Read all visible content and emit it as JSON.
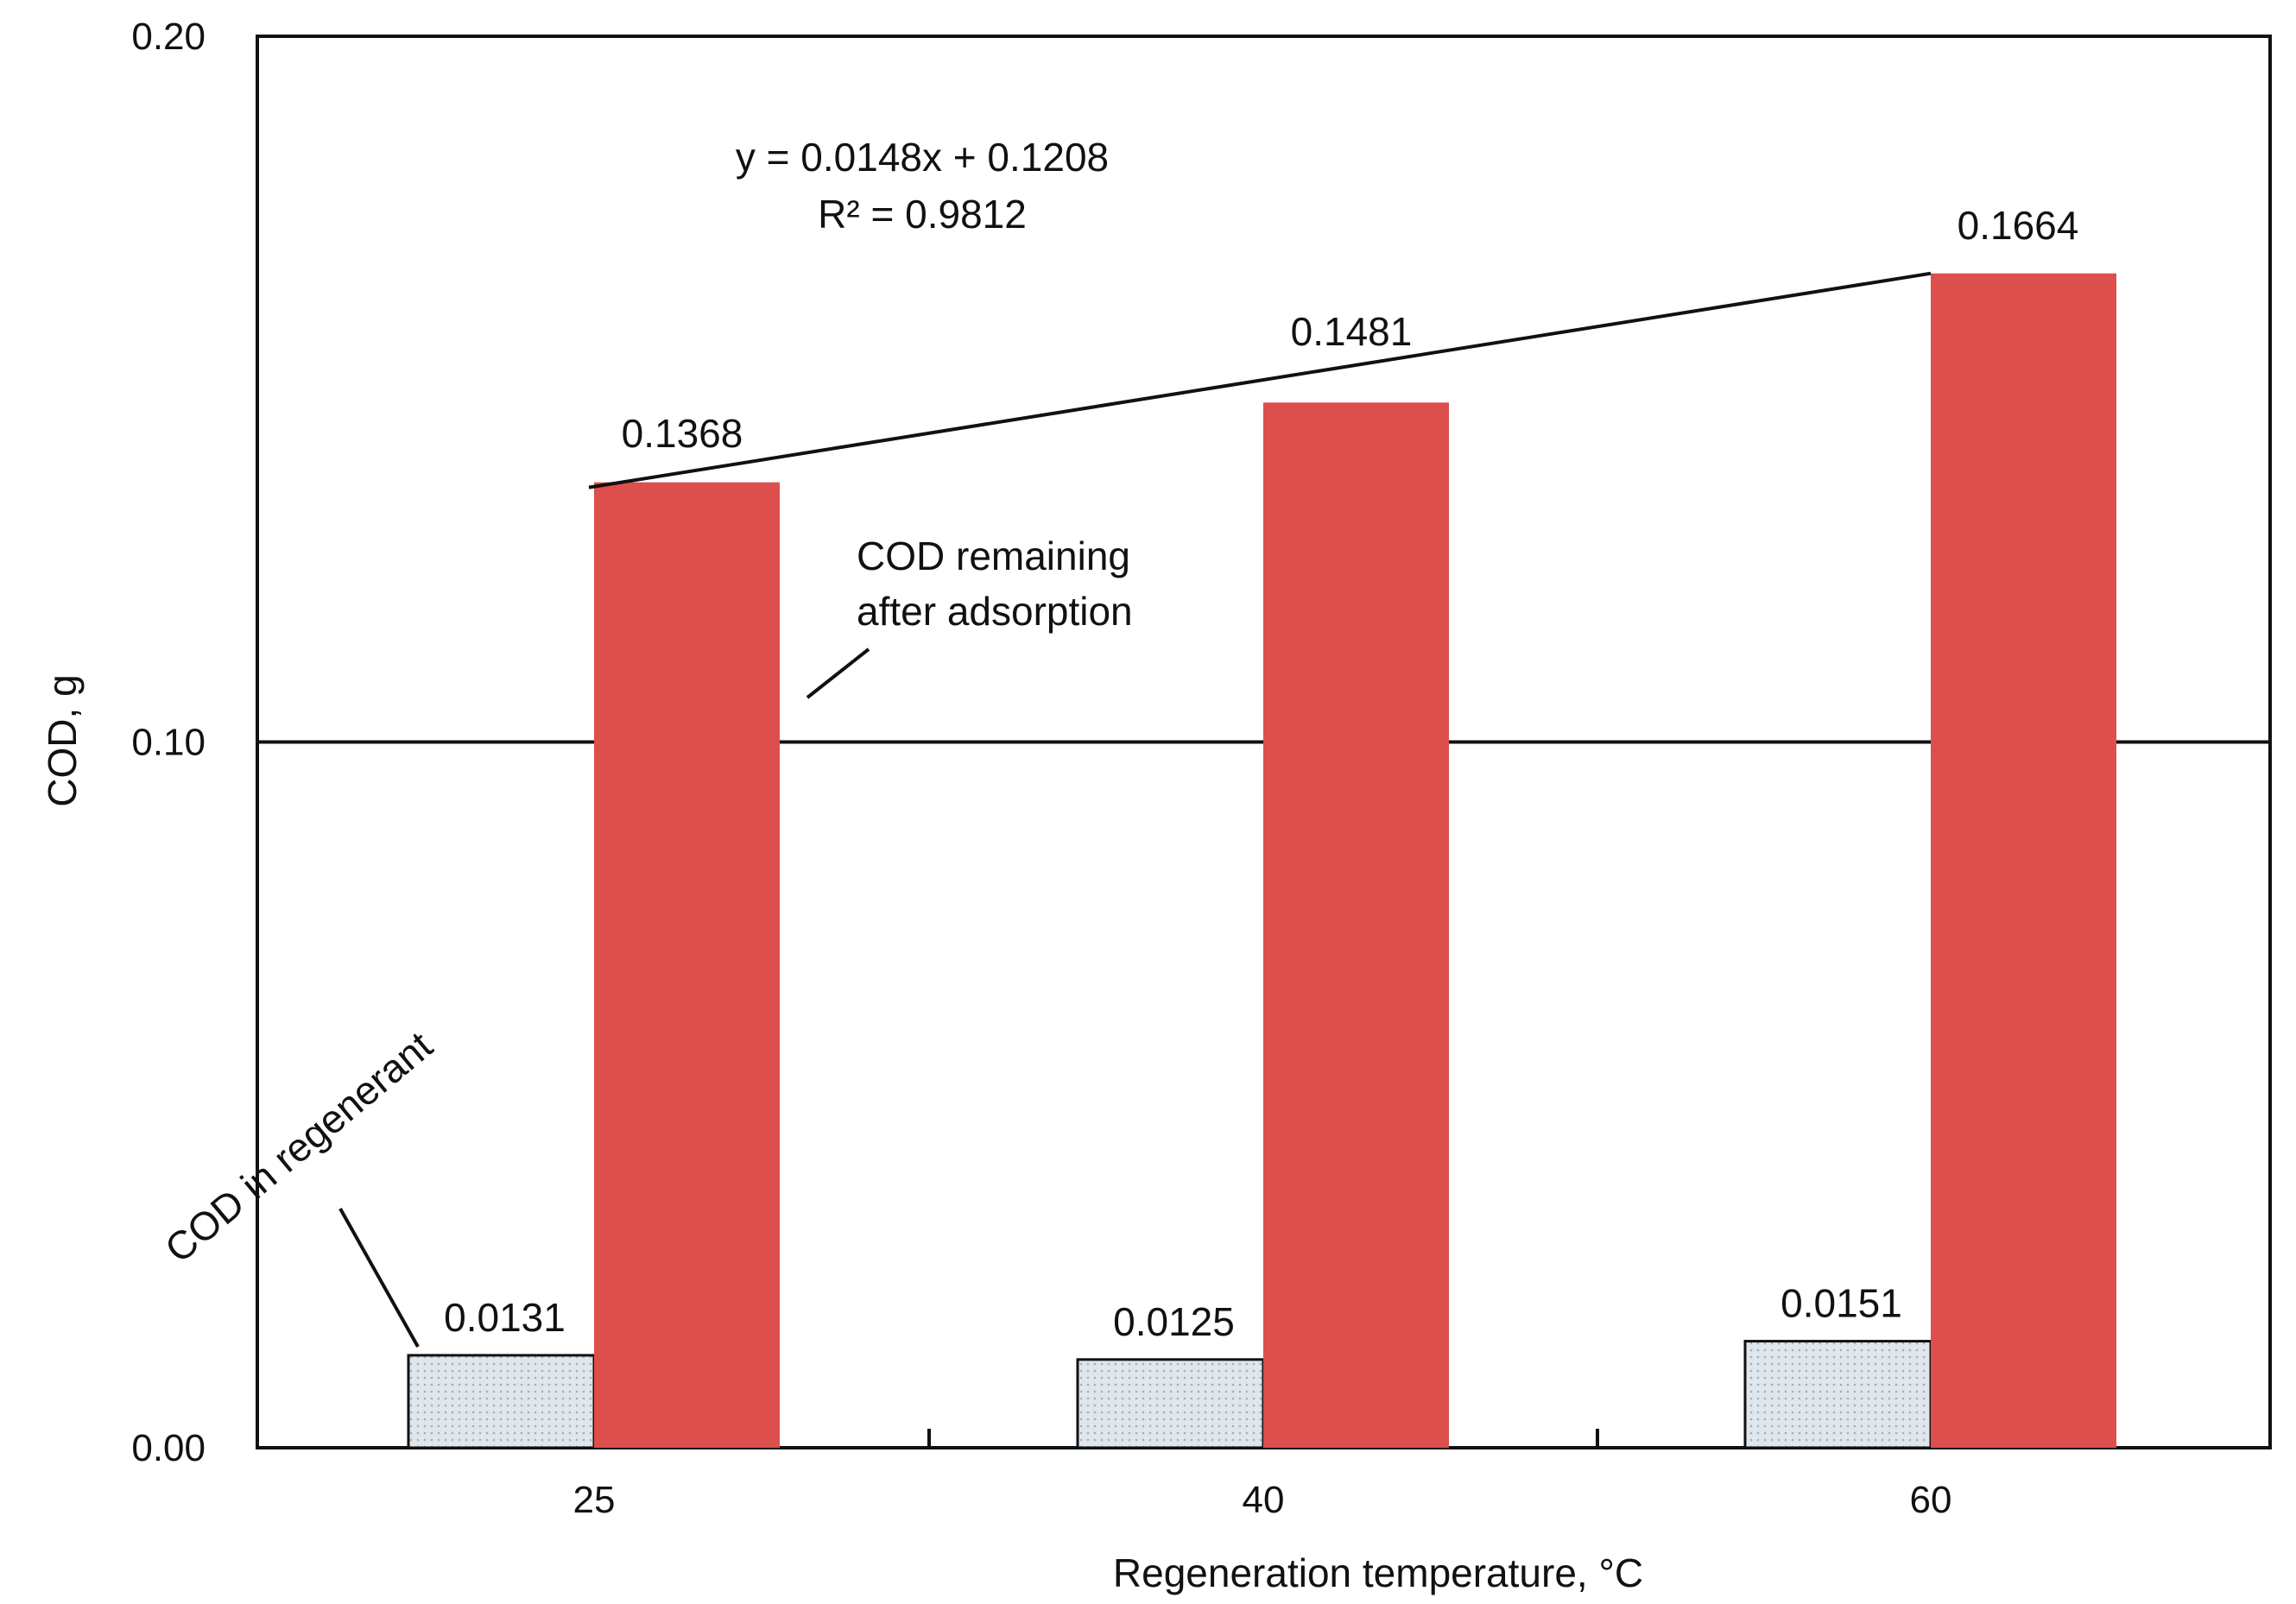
{
  "chart_data": {
    "type": "bar",
    "title": "",
    "xlabel": "Regeneration temperature, °C",
    "ylabel": "COD, g",
    "categories": [
      "25",
      "40",
      "60"
    ],
    "ylim": [
      0.0,
      0.2
    ],
    "yticks": [
      "0.00",
      "0.10",
      "0.20"
    ],
    "grid": false,
    "series": [
      {
        "name": "COD in regenerant",
        "values": [
          0.0131,
          0.0125,
          0.0151
        ],
        "labels": [
          "0.0131",
          "0.0125",
          "0.0151"
        ],
        "fill": "#dfe6ec",
        "stroke": "#111111"
      },
      {
        "name": "COD remaining after adsorption",
        "values": [
          0.1368,
          0.1481,
          0.1664
        ],
        "labels": [
          "0.1368",
          "0.1481",
          "0.1664"
        ],
        "fill": "#dc4f4c"
      }
    ],
    "reference_line": {
      "y": 0.1
    },
    "trendline": {
      "series": "COD remaining after adsorption",
      "equation": "y = 0.0148x + 0.1208",
      "r2_label": "R² = 0.9812"
    },
    "annotations": {
      "regenerant_label": "COD in regenerant",
      "remaining_label_line1": "COD remaining",
      "remaining_label_line2": "after adsorption"
    }
  }
}
